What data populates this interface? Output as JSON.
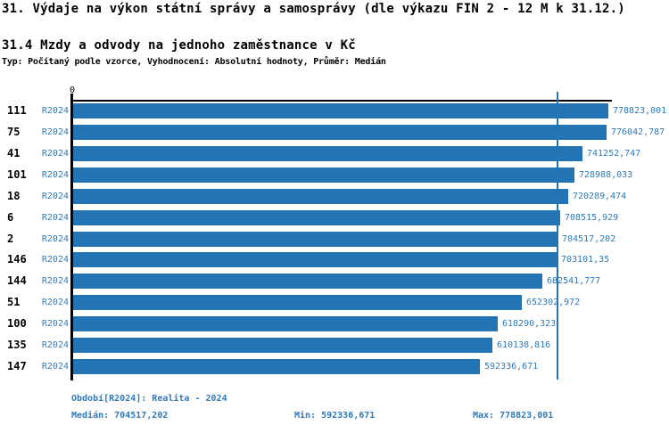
{
  "header": {
    "title": "31. Výdaje na výkon státní správy a samosprávy (dle výkazu FIN 2 - 12 M k 31.12.)",
    "subtitle": "31.4 Mzdy a odvody na jednoho zaměstnance v Kč",
    "meta": "Typ: Počítaný podle vzorce, Vyhodnocení: Absolutní hodnoty, Průměr: Medián"
  },
  "chart_data": {
    "type": "bar",
    "orientation": "horizontal",
    "title": "31.4 Mzdy a odvody na jednoho zaměstnance v Kč",
    "xlabel": "",
    "ylabel": "",
    "xlim": [
      0,
      778823.001
    ],
    "origin_tick_label": "0",
    "grid": false,
    "median_value": 704517.202,
    "colors": {
      "bar": "#2274b4",
      "median_line": "#2274b4",
      "value_text": "#2e79ba",
      "axis": "#000000"
    },
    "rows": [
      {
        "id": "111",
        "period": "R2024",
        "value": 778823.001,
        "value_label": "778823,001"
      },
      {
        "id": "75",
        "period": "R2024",
        "value": 776042.787,
        "value_label": "776042,787"
      },
      {
        "id": "41",
        "period": "R2024",
        "value": 741252.747,
        "value_label": "741252,747"
      },
      {
        "id": "101",
        "period": "R2024",
        "value": 728988.033,
        "value_label": "728988,033"
      },
      {
        "id": "18",
        "period": "R2024",
        "value": 720289.474,
        "value_label": "720289,474"
      },
      {
        "id": "6",
        "period": "R2024",
        "value": 708515.929,
        "value_label": "708515,929"
      },
      {
        "id": "2",
        "period": "R2024",
        "value": 704517.202,
        "value_label": "704517,202"
      },
      {
        "id": "146",
        "period": "R2024",
        "value": 703101.35,
        "value_label": "703101,35"
      },
      {
        "id": "144",
        "period": "R2024",
        "value": 682541.777,
        "value_label": "682541,777"
      },
      {
        "id": "51",
        "period": "R2024",
        "value": 652302.972,
        "value_label": "652302,972"
      },
      {
        "id": "100",
        "period": "R2024",
        "value": 618290.323,
        "value_label": "618290,323"
      },
      {
        "id": "135",
        "period": "R2024",
        "value": 610138.816,
        "value_label": "610138,816"
      },
      {
        "id": "147",
        "period": "R2024",
        "value": 592336.671,
        "value_label": "592336,671"
      }
    ]
  },
  "footer": {
    "period_line": "Období[R2024]: Realita - 2024",
    "median": "Medián: 704517,202",
    "min": "Min: 592336,671",
    "max": "Max: 778823,001"
  }
}
